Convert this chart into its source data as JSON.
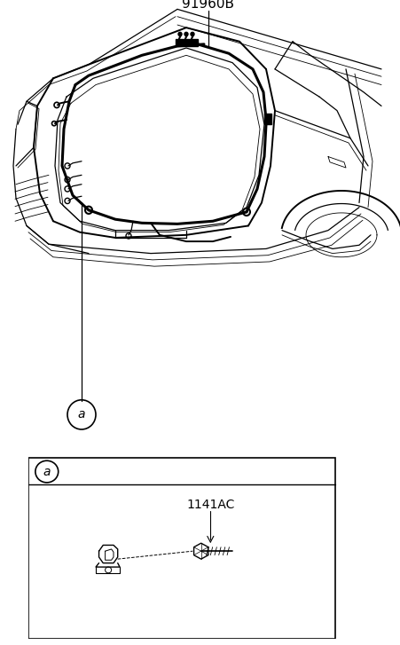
{
  "title": "91960B",
  "part_label": "1141AC",
  "callout_a": "a",
  "bg_color": "#ffffff",
  "line_color": "#000000",
  "fig_width": 4.52,
  "fig_height": 7.27,
  "dpi": 100
}
